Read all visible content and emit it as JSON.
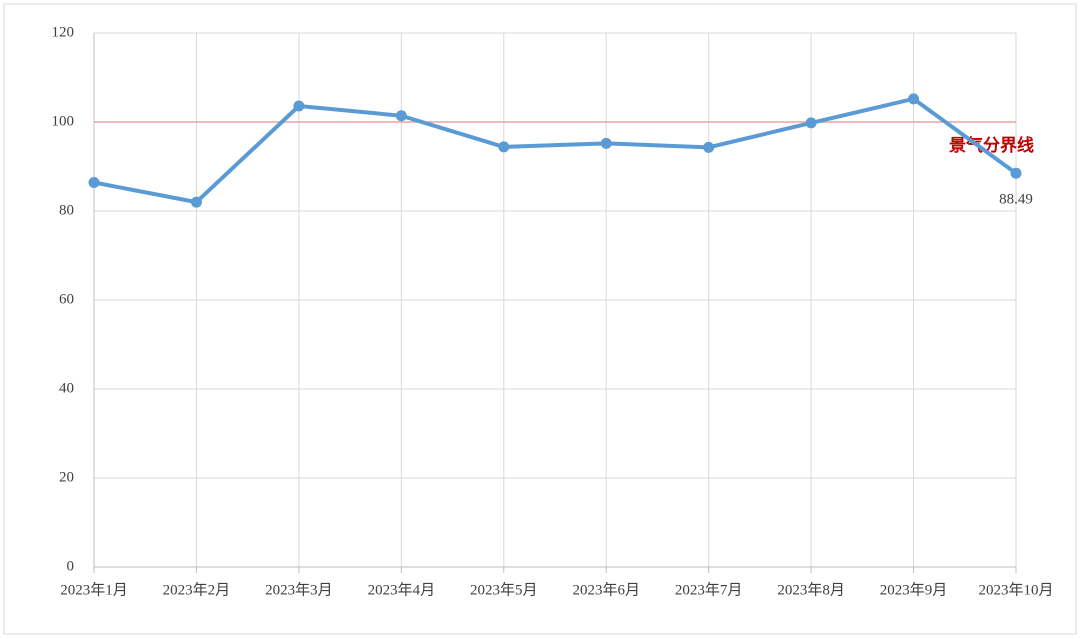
{
  "chart_data": {
    "type": "line",
    "categories": [
      "2023年1月",
      "2023年2月",
      "2023年3月",
      "2023年4月",
      "2023年5月",
      "2023年6月",
      "2023年7月",
      "2023年8月",
      "2023年9月",
      "2023年10月"
    ],
    "series": [
      {
        "color": "#5b9bd5",
        "values": [
          86.4,
          82.0,
          103.6,
          101.4,
          94.4,
          95.2,
          94.3,
          99.8,
          105.2,
          88.49
        ],
        "value_labels": [
          null,
          null,
          null,
          null,
          null,
          null,
          null,
          null,
          null,
          "88.49"
        ]
      }
    ],
    "ylim": [
      0,
      120
    ],
    "yticks": [
      0,
      20,
      40,
      60,
      80,
      100,
      120
    ],
    "grid": true,
    "reference_line": {
      "value": 100,
      "label": "景气分界线",
      "color": "#e8a4a4",
      "label_color": "#c00000"
    }
  }
}
